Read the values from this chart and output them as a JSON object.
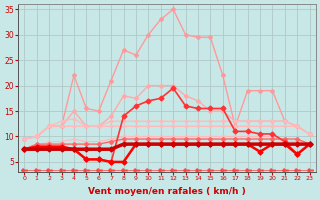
{
  "title": "",
  "xlabel": "Vent moyen/en rafales ( km/h )",
  "xlim": [
    -0.5,
    23.5
  ],
  "ylim": [
    3,
    36
  ],
  "yticks": [
    5,
    10,
    15,
    20,
    25,
    30,
    35
  ],
  "xticks": [
    0,
    1,
    2,
    3,
    4,
    5,
    6,
    7,
    8,
    9,
    10,
    11,
    12,
    13,
    14,
    15,
    16,
    17,
    18,
    19,
    20,
    21,
    22,
    23
  ],
  "background_color": "#c8e8e8",
  "grid_color": "#b0c8c8",
  "series": [
    {
      "y": [
        9.5,
        10,
        12,
        12,
        22,
        15.5,
        15,
        21,
        27,
        26,
        30,
        33,
        35,
        30,
        29.5,
        29.5,
        22,
        12,
        19,
        19,
        19,
        13,
        12,
        10.5
      ],
      "color": "#ff9999",
      "lw": 1.0,
      "marker": "D",
      "ms": 2.0,
      "zorder": 2
    },
    {
      "y": [
        9.5,
        10,
        12,
        12,
        15,
        12,
        12,
        14,
        18,
        17.5,
        20,
        20,
        20,
        18,
        17,
        15,
        15,
        13,
        13,
        13,
        13,
        13,
        12,
        10.5
      ],
      "color": "#ffaaaa",
      "lw": 1.0,
      "marker": "D",
      "ms": 2.0,
      "zorder": 2
    },
    {
      "y": [
        9.5,
        10,
        12,
        13,
        13.5,
        12,
        12,
        13,
        13,
        13,
        13,
        13,
        13,
        13,
        13,
        13,
        13,
        13,
        13,
        13,
        13,
        13,
        12,
        10.5
      ],
      "color": "#ffbbbb",
      "lw": 1.0,
      "marker": "D",
      "ms": 1.5,
      "zorder": 2
    },
    {
      "y": [
        9.5,
        10,
        12,
        12,
        12,
        12,
        12,
        12,
        12,
        12,
        12,
        12,
        12,
        12,
        12,
        12,
        12,
        12,
        12,
        12,
        12,
        12,
        12,
        10.5
      ],
      "color": "#ffbbbb",
      "lw": 1.0,
      "marker": "D",
      "ms": 1.5,
      "zorder": 2
    },
    {
      "y": [
        7.5,
        8,
        9,
        9,
        9.5,
        9,
        9,
        9.5,
        10,
        10,
        10,
        10,
        10,
        10,
        10,
        10,
        10,
        10,
        10,
        10,
        10,
        9,
        9,
        8.5
      ],
      "color": "#ffbbbb",
      "lw": 0.8,
      "marker": "D",
      "ms": 1.5,
      "zorder": 2
    },
    {
      "y": [
        7.5,
        8,
        8,
        8,
        7.5,
        5.5,
        5.5,
        5,
        14,
        16,
        17,
        17.5,
        19.5,
        16,
        15.5,
        15.5,
        15.5,
        11,
        11,
        10.5,
        10.5,
        9,
        6.5,
        8.5
      ],
      "color": "#ff3333",
      "lw": 1.2,
      "marker": "D",
      "ms": 2.5,
      "zorder": 4
    },
    {
      "y": [
        7.5,
        8.5,
        8.5,
        8.5,
        8.5,
        8.5,
        8.5,
        9,
        9.5,
        9.5,
        9.5,
        9.5,
        9.5,
        9.5,
        9.5,
        9.5,
        9.5,
        9.5,
        9.5,
        9.5,
        9.5,
        9.5,
        9.5,
        8.5
      ],
      "color": "#ff6666",
      "lw": 1.0,
      "marker": "D",
      "ms": 2.0,
      "zorder": 3
    },
    {
      "y": [
        7.5,
        7.5,
        7.5,
        7.5,
        7.5,
        7.5,
        7.5,
        7.5,
        8.5,
        8.5,
        8.5,
        8.5,
        8.5,
        8.5,
        8.5,
        8.5,
        8.5,
        8.5,
        8.5,
        8.5,
        8.5,
        8.5,
        8.5,
        8.5
      ],
      "color": "#cc0000",
      "lw": 2.5,
      "marker": "D",
      "ms": 2.5,
      "zorder": 6
    },
    {
      "y": [
        7.5,
        8,
        8,
        8,
        7.5,
        5.5,
        5.5,
        5.0,
        5.0,
        8.5,
        8.5,
        8.5,
        8.5,
        8.5,
        8.5,
        8.5,
        8.5,
        8.5,
        8.5,
        7.0,
        8.5,
        8.5,
        6.5,
        8.5
      ],
      "color": "#ff0000",
      "lw": 1.8,
      "marker": "D",
      "ms": 2.5,
      "zorder": 5
    },
    {
      "y": [
        3.5,
        3.5,
        3.5,
        3.5,
        3.5,
        3.5,
        3.5,
        3.5,
        3.5,
        3.5,
        3.5,
        3.5,
        3.5,
        3.5,
        3.5,
        3.5,
        3.5,
        3.5,
        3.5,
        3.5,
        3.5,
        3.5,
        3.5,
        3.5
      ],
      "color": "#ff4444",
      "lw": 0.5,
      "marker": "$\\leftarrow$",
      "ms": 4.0,
      "zorder": 1
    }
  ]
}
